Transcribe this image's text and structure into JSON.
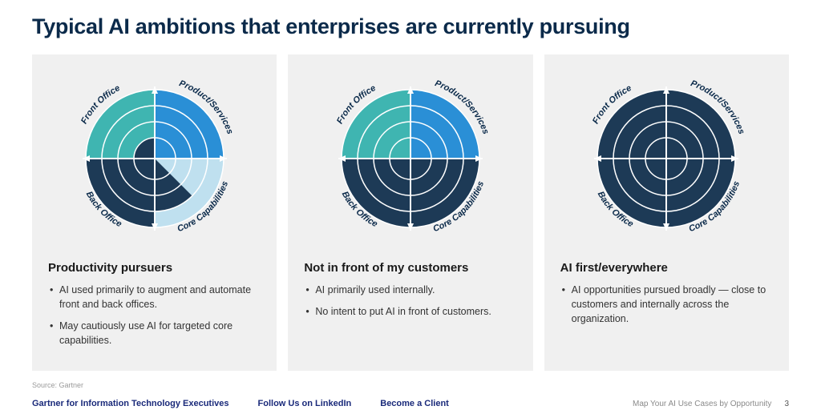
{
  "title": "Typical AI ambitions that enterprises are currently pursuing",
  "source": "Source: Gartner",
  "footer": {
    "link1": "Gartner for Information Technology Executives",
    "link2": "Follow Us on LinkedIn",
    "link3": "Become a Client",
    "doc_title": "Map Your AI Use Cases by Opportunity",
    "page": "3"
  },
  "chart": {
    "type": "quadrant-radar",
    "outer_radius": 86,
    "ring_radii": [
      86,
      66,
      46,
      26
    ],
    "ring_stroke": "#ffffff",
    "ring_stroke_width": 1.5,
    "arrow_color": "#ffffff",
    "label_color": "#0b2a4a",
    "label_fontsize": 11,
    "quadrant_labels": {
      "top_left": "Front Office",
      "top_right": "Product/Services",
      "bottom_left": "Back Office",
      "bottom_right": "Core Capabilities"
    },
    "base_band_colors": {
      "top_left": "#3fb5b1",
      "top_right": "#2a8fd6",
      "bottom_left": "#bfe6e3",
      "bottom_right": "#bfe0ef"
    },
    "fill_color": "#1d3a56"
  },
  "cards": [
    {
      "heading": "Productivity pursuers",
      "bullets": [
        "AI used primarily to augment and automate front and back offices.",
        "May cautiously use AI for targeted core capabilities."
      ],
      "fill": {
        "top_left": {
          "level": 1
        },
        "top_right": {
          "level": 0
        },
        "bottom_left": {
          "level": 4
        },
        "bottom_right": {
          "level": 0,
          "wedge": {
            "part": "lower",
            "level": 3
          }
        }
      }
    },
    {
      "heading": "Not in front of my customers",
      "bullets": [
        "AI primarily used internally.",
        "No intent to put AI in front of customers."
      ],
      "fill": {
        "top_left": {
          "level": 0
        },
        "top_right": {
          "level": 0
        },
        "bottom_left": {
          "level": 4
        },
        "bottom_right": {
          "level": 4
        }
      }
    },
    {
      "heading": "AI first/everywhere",
      "bullets": [
        "AI opportunities pursued broadly — close to customers and internally across the organization."
      ],
      "fill": {
        "top_left": {
          "level": 4
        },
        "top_right": {
          "level": 4
        },
        "bottom_left": {
          "level": 4
        },
        "bottom_right": {
          "level": 4
        }
      }
    }
  ]
}
